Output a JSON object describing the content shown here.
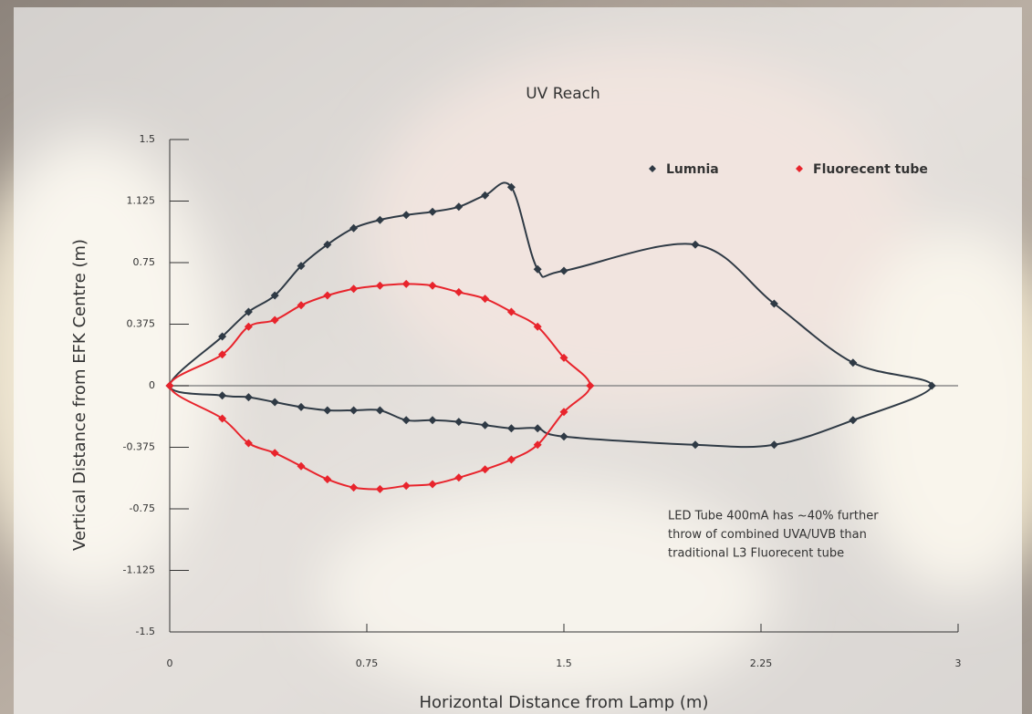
{
  "chart_data": {
    "type": "scatter",
    "title": "UV Reach",
    "x_label": "Horizontal Distance from Lamp (m)",
    "y_label": "Vertical Distance from EFK Centre (m)",
    "xlim": [
      0,
      3
    ],
    "xticks": [
      0,
      0.75,
      1.5,
      2.25,
      3
    ],
    "ylim": [
      -1.5,
      1.5
    ],
    "yticks": [
      1.5,
      1.125,
      0.75,
      0.375,
      0,
      -0.375,
      -0.75,
      -1.125,
      -1.5
    ],
    "closed": true,
    "smooth": true,
    "series": [
      {
        "name": "Lumnia",
        "color": "#2f3a45",
        "x": [
          0,
          0.2,
          0.3,
          0.4,
          0.5,
          0.6,
          0.7,
          0.8,
          0.9,
          1.0,
          1.1,
          1.2,
          1.3,
          1.4,
          1.5,
          2.0,
          2.3,
          2.6,
          2.9,
          2.6,
          2.3,
          2.0,
          1.5,
          1.4,
          1.3,
          1.2,
          1.1,
          1.0,
          0.9,
          0.8,
          0.7,
          0.6,
          0.5,
          0.4,
          0.3,
          0.2
        ],
        "values": [
          0,
          0.3,
          0.45,
          0.55,
          0.73,
          0.86,
          0.96,
          1.01,
          1.04,
          1.06,
          1.09,
          1.16,
          1.21,
          0.71,
          0.7,
          0.86,
          0.5,
          0.14,
          0,
          -0.21,
          -0.36,
          -0.36,
          -0.31,
          -0.26,
          -0.26,
          -0.24,
          -0.22,
          -0.21,
          -0.21,
          -0.15,
          -0.15,
          -0.15,
          -0.13,
          -0.1,
          -0.07,
          -0.06
        ]
      },
      {
        "name": "Fluorecent tube",
        "color": "#e8242c",
        "x": [
          0,
          0.2,
          0.3,
          0.4,
          0.5,
          0.6,
          0.7,
          0.8,
          0.9,
          1.0,
          1.1,
          1.2,
          1.3,
          1.4,
          1.5,
          1.6,
          1.5,
          1.4,
          1.3,
          1.2,
          1.1,
          1.0,
          0.9,
          0.8,
          0.7,
          0.6,
          0.5,
          0.4,
          0.3,
          0.2
        ],
        "values": [
          0,
          0.19,
          0.36,
          0.4,
          0.49,
          0.55,
          0.59,
          0.61,
          0.62,
          0.61,
          0.57,
          0.53,
          0.45,
          0.36,
          0.17,
          0,
          -0.16,
          -0.36,
          -0.45,
          -0.51,
          -0.56,
          -0.6,
          -0.61,
          -0.63,
          -0.62,
          -0.57,
          -0.49,
          -0.41,
          -0.35,
          -0.2
        ]
      }
    ],
    "annotation": [
      "LED Tube 400mA has ~40% further",
      "throw of combined UVA/UVB than",
      "traditional L3 Fluorecent tube"
    ]
  }
}
